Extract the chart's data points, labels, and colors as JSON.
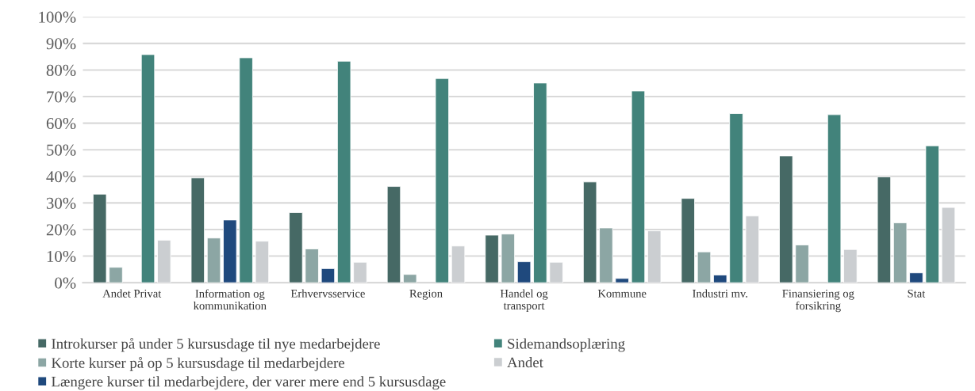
{
  "chart_data": {
    "type": "bar",
    "categories": [
      "Andet Privat",
      "Information og\nkommunikation",
      "Erhvervsservice",
      "Region",
      "Handel og\ntransport",
      "Kommune",
      "Industri mv.",
      "Finansiering og\nforsikring",
      "Stat"
    ],
    "series": [
      {
        "name": "Introkurser på under 5 kursusdage til nye medarbejdere",
        "color": "#466965",
        "values": [
          33.3,
          39.4,
          26.4,
          36.2,
          17.9,
          37.9,
          31.7,
          47.7,
          39.8
        ]
      },
      {
        "name": "Korte kurser på op 5 kursusdage til medarbejdere",
        "color": "#8ca6a4",
        "values": [
          5.8,
          16.8,
          12.7,
          3.1,
          18.3,
          20.6,
          11.6,
          14.2,
          22.5
        ]
      },
      {
        "name": "Længere kurser til medarbejdere, der varer mere end 5 kursusdage",
        "color": "#1f497d",
        "values": [
          null,
          23.6,
          5.3,
          null,
          7.9,
          1.6,
          2.9,
          null,
          3.7
        ]
      },
      {
        "name": "Sidemandsoplæring",
        "color": "#42837b",
        "values": [
          85.8,
          84.6,
          83.3,
          76.8,
          75.1,
          72.1,
          63.6,
          63.2,
          51.5
        ]
      },
      {
        "name": "Andet",
        "color": "#cbced1",
        "values": [
          16.0,
          15.6,
          7.7,
          13.8,
          7.7,
          19.5,
          25.1,
          12.5,
          28.3
        ]
      }
    ],
    "ylim": [
      0,
      100
    ],
    "yticks": [
      {
        "value": 0,
        "label": "0%"
      },
      {
        "value": 10,
        "label": "10%"
      },
      {
        "value": 20,
        "label": "20%"
      },
      {
        "value": 30,
        "label": "30%"
      },
      {
        "value": 40,
        "label": "40%"
      },
      {
        "value": 50,
        "label": "50%"
      },
      {
        "value": 60,
        "label": "60%"
      },
      {
        "value": 70,
        "label": "70%"
      },
      {
        "value": 80,
        "label": "80%"
      },
      {
        "value": 90,
        "label": "90%"
      },
      {
        "value": 100,
        "label": "100%"
      }
    ],
    "grid": "y",
    "legend": "bottom"
  }
}
